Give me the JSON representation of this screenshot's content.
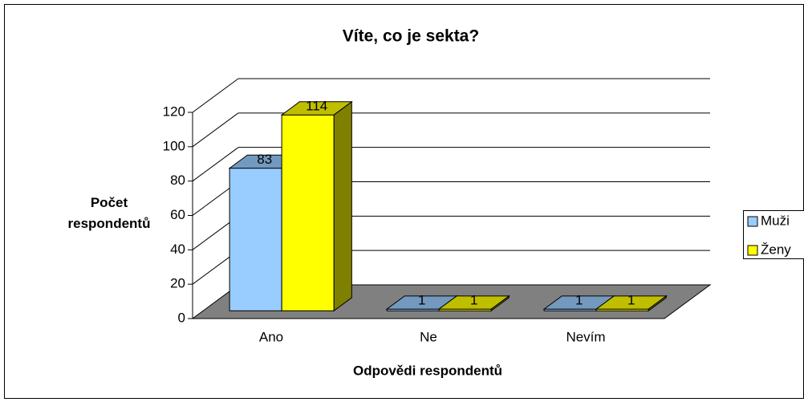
{
  "chart_data": {
    "type": "bar3d",
    "title": "Víte, co je sekta?",
    "xlabel": "Odpovědi respondentů",
    "ylabel": "Počet respondentů",
    "categories": [
      "Ano",
      "Ne",
      "Nevím"
    ],
    "series": [
      {
        "name": "Muži",
        "color": "#99ccff",
        "values": [
          83,
          1,
          1
        ]
      },
      {
        "name": "Ženy",
        "color": "#ffff00",
        "values": [
          114,
          1,
          1
        ]
      }
    ],
    "ylim": [
      0,
      120
    ],
    "yticks": [
      0,
      20,
      40,
      60,
      80,
      100,
      120
    ],
    "grid": true,
    "legend": "right"
  }
}
